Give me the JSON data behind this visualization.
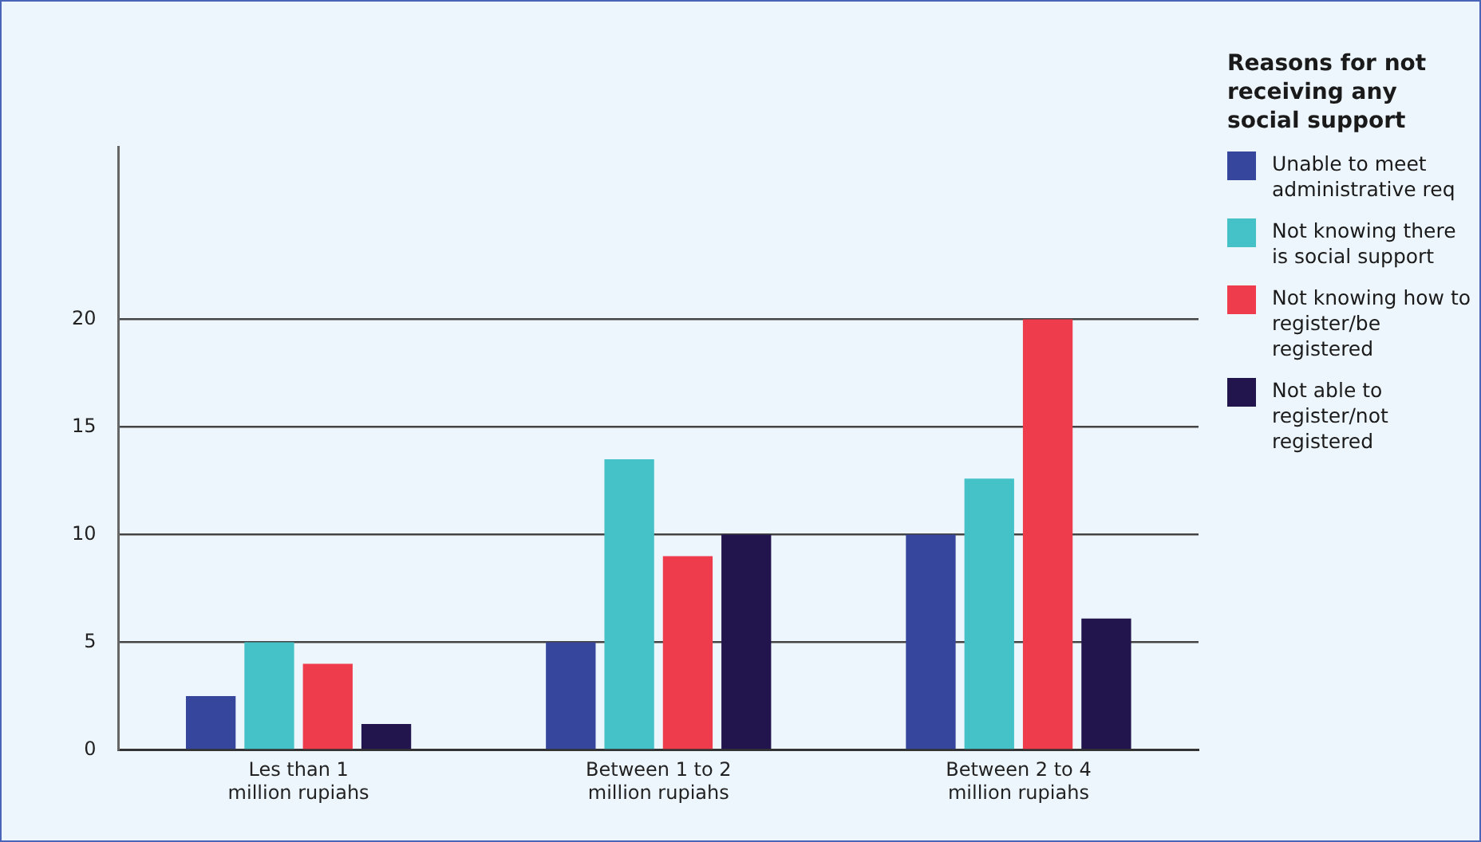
{
  "chart_data": {
    "type": "bar",
    "legend_title": "Reasons for not receiving any social support",
    "categories": [
      "Les than 1\nmillion rupiahs",
      "Between 1 to 2\nmillion rupiahs",
      "Between 2 to 4\nmillion rupiahs"
    ],
    "series": [
      {
        "name": "Unable to meet administrative req",
        "color": "#36469c",
        "values": [
          2.5,
          5,
          10
        ]
      },
      {
        "name": "Not knowing there is social support",
        "color": "#45c2c7",
        "values": [
          5,
          13.5,
          12.6
        ]
      },
      {
        "name": "Not knowing how to register/be registered",
        "color": "#ef3c4d",
        "values": [
          4,
          9,
          20
        ]
      },
      {
        "name": "Not able to register/not registered",
        "color": "#22154d",
        "values": [
          1.2,
          10,
          6.1
        ]
      }
    ],
    "ylim": [
      0,
      28
    ],
    "yticks": [
      0,
      5,
      10,
      15,
      20
    ],
    "grid": "y",
    "legend": "right"
  }
}
